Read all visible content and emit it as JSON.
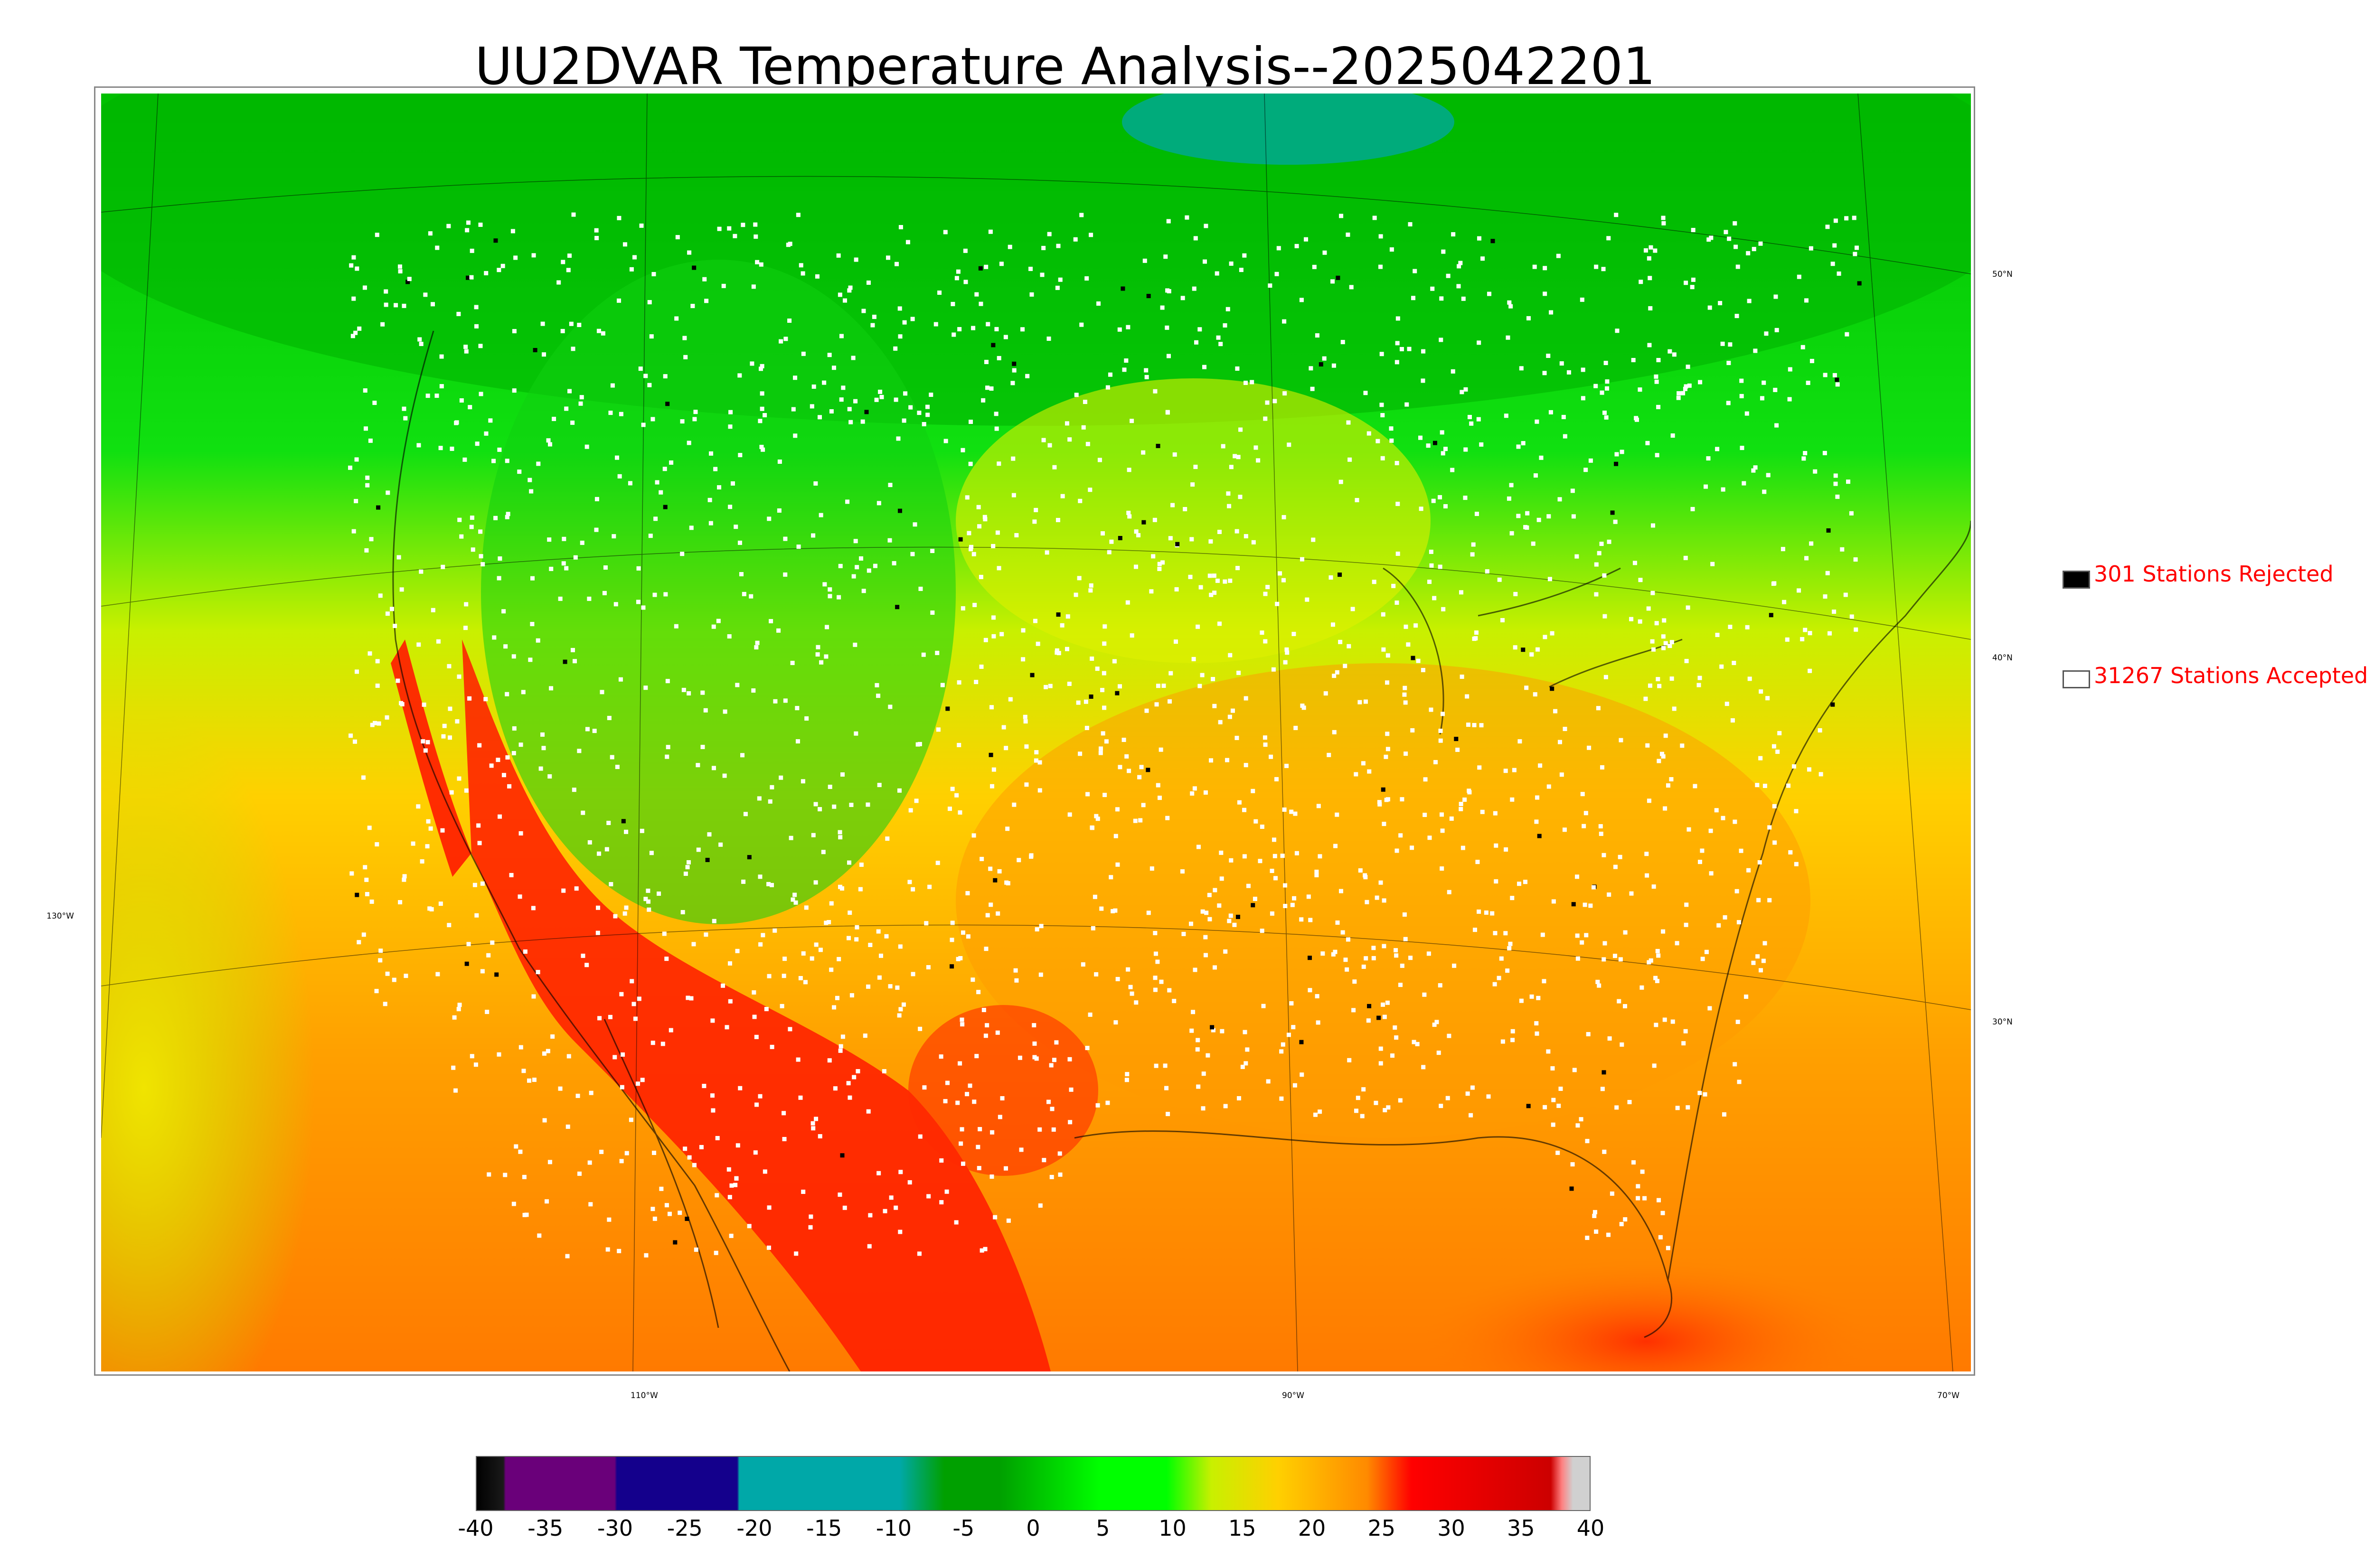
{
  "title": "UU2DVAR Temperature Analysis--2025042201",
  "map": {
    "lat_labels": [
      "50°N",
      "40°N",
      "30°N"
    ],
    "lon_labels": [
      "130°W",
      "110°W",
      "90°W",
      "70°W"
    ],
    "colors": {
      "cold_north": "#00b400",
      "mid": "#00ff00",
      "cool": "#7fff00",
      "yellow": "#e6f000",
      "warm": "#ffc400",
      "orange": "#ff8a00",
      "hot": "#ff1a00",
      "teal": "#00a89a",
      "station_accepted": "#ffffff",
      "station_rejected": "#000000"
    }
  },
  "legend": {
    "rejected": "301 Stations Rejected",
    "accepted": "31267 Stations Accepted"
  },
  "colorbar": {
    "ticks": [
      "-40",
      "-35",
      "-30",
      "-25",
      "-20",
      "-15",
      "-10",
      "-5",
      "0",
      "5",
      "10",
      "15",
      "20",
      "25",
      "30",
      "35",
      "40"
    ],
    "colors": [
      "#000000",
      "#6a007a",
      "#14008c",
      "#00a8a8",
      "#00a000",
      "#00ff00",
      "#ffff00",
      "#ffb000",
      "#ff0000",
      "#cc0000",
      "#d0d0d0"
    ]
  }
}
